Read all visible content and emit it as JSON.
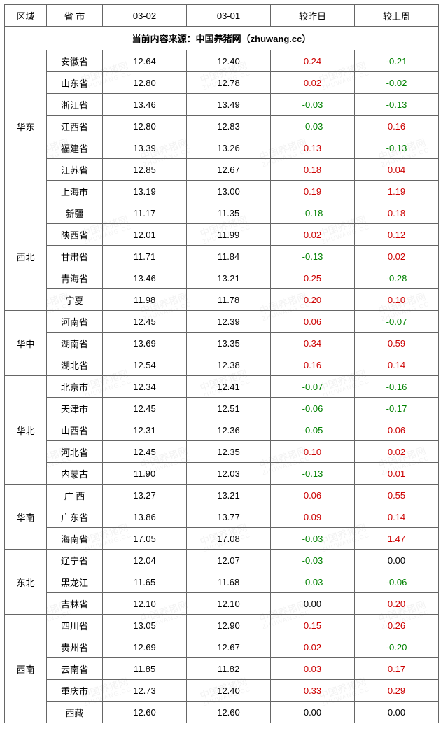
{
  "header": {
    "region": "区域",
    "province": "省 市",
    "date1": "03-02",
    "date2": "03-01",
    "vs_yesterday": "较昨日",
    "vs_lastweek": "较上周"
  },
  "source_line": "当前内容来源：中国养猪网（zhuwang.cc）",
  "watermark_main": "中国养猪网",
  "watermark_sub": "ZHUWANG.CC",
  "colors": {
    "positive": "#cc0000",
    "negative": "#008000",
    "zero": "#000000",
    "border": "#666666",
    "background": "#ffffff"
  },
  "regions": [
    {
      "name": "华东",
      "rows": [
        {
          "prov": "安徽省",
          "d1": "12.64",
          "d2": "12.40",
          "dy": "0.24",
          "dw": "-0.21"
        },
        {
          "prov": "山东省",
          "d1": "12.80",
          "d2": "12.78",
          "dy": "0.02",
          "dw": "-0.02"
        },
        {
          "prov": "浙江省",
          "d1": "13.46",
          "d2": "13.49",
          "dy": "-0.03",
          "dw": "-0.13"
        },
        {
          "prov": "江西省",
          "d1": "12.80",
          "d2": "12.83",
          "dy": "-0.03",
          "dw": "0.16"
        },
        {
          "prov": "福建省",
          "d1": "13.39",
          "d2": "13.26",
          "dy": "0.13",
          "dw": "-0.13"
        },
        {
          "prov": "江苏省",
          "d1": "12.85",
          "d2": "12.67",
          "dy": "0.18",
          "dw": "0.04"
        },
        {
          "prov": "上海市",
          "d1": "13.19",
          "d2": "13.00",
          "dy": "0.19",
          "dw": "1.19"
        }
      ]
    },
    {
      "name": "西北",
      "rows": [
        {
          "prov": "新疆",
          "d1": "11.17",
          "d2": "11.35",
          "dy": "-0.18",
          "dw": "0.18"
        },
        {
          "prov": "陕西省",
          "d1": "12.01",
          "d2": "11.99",
          "dy": "0.02",
          "dw": "0.12"
        },
        {
          "prov": "甘肃省",
          "d1": "11.71",
          "d2": "11.84",
          "dy": "-0.13",
          "dw": "0.02"
        },
        {
          "prov": "青海省",
          "d1": "13.46",
          "d2": "13.21",
          "dy": "0.25",
          "dw": "-0.28"
        },
        {
          "prov": "宁夏",
          "d1": "11.98",
          "d2": "11.78",
          "dy": "0.20",
          "dw": "0.10"
        }
      ]
    },
    {
      "name": "华中",
      "rows": [
        {
          "prov": "河南省",
          "d1": "12.45",
          "d2": "12.39",
          "dy": "0.06",
          "dw": "-0.07"
        },
        {
          "prov": "湖南省",
          "d1": "13.69",
          "d2": "13.35",
          "dy": "0.34",
          "dw": "0.59"
        },
        {
          "prov": "湖北省",
          "d1": "12.54",
          "d2": "12.38",
          "dy": "0.16",
          "dw": "0.14"
        }
      ]
    },
    {
      "name": "华北",
      "rows": [
        {
          "prov": "北京市",
          "d1": "12.34",
          "d2": "12.41",
          "dy": "-0.07",
          "dw": "-0.16"
        },
        {
          "prov": "天津市",
          "d1": "12.45",
          "d2": "12.51",
          "dy": "-0.06",
          "dw": "-0.17"
        },
        {
          "prov": "山西省",
          "d1": "12.31",
          "d2": "12.36",
          "dy": "-0.05",
          "dw": "0.06"
        },
        {
          "prov": "河北省",
          "d1": "12.45",
          "d2": "12.35",
          "dy": "0.10",
          "dw": "0.02"
        },
        {
          "prov": "内蒙古",
          "d1": "11.90",
          "d2": "12.03",
          "dy": "-0.13",
          "dw": "0.01"
        }
      ]
    },
    {
      "name": "华南",
      "rows": [
        {
          "prov": "广 西",
          "d1": "13.27",
          "d2": "13.21",
          "dy": "0.06",
          "dw": "0.55"
        },
        {
          "prov": "广东省",
          "d1": "13.86",
          "d2": "13.77",
          "dy": "0.09",
          "dw": "0.14"
        },
        {
          "prov": "海南省",
          "d1": "17.05",
          "d2": "17.08",
          "dy": "-0.03",
          "dw": "1.47"
        }
      ]
    },
    {
      "name": "东北",
      "rows": [
        {
          "prov": "辽宁省",
          "d1": "12.04",
          "d2": "12.07",
          "dy": "-0.03",
          "dw": "0.00"
        },
        {
          "prov": "黑龙江",
          "d1": "11.65",
          "d2": "11.68",
          "dy": "-0.03",
          "dw": "-0.06"
        },
        {
          "prov": "吉林省",
          "d1": "12.10",
          "d2": "12.10",
          "dy": "0.00",
          "dw": "0.20"
        }
      ]
    },
    {
      "name": "西南",
      "rows": [
        {
          "prov": "四川省",
          "d1": "13.05",
          "d2": "12.90",
          "dy": "0.15",
          "dw": "0.26"
        },
        {
          "prov": "贵州省",
          "d1": "12.69",
          "d2": "12.67",
          "dy": "0.02",
          "dw": "-0.20"
        },
        {
          "prov": "云南省",
          "d1": "11.85",
          "d2": "11.82",
          "dy": "0.03",
          "dw": "0.17"
        },
        {
          "prov": "重庆市",
          "d1": "12.73",
          "d2": "12.40",
          "dy": "0.33",
          "dw": "0.29"
        },
        {
          "prov": "西藏",
          "d1": "12.60",
          "d2": "12.60",
          "dy": "0.00",
          "dw": "0.00"
        }
      ]
    }
  ]
}
